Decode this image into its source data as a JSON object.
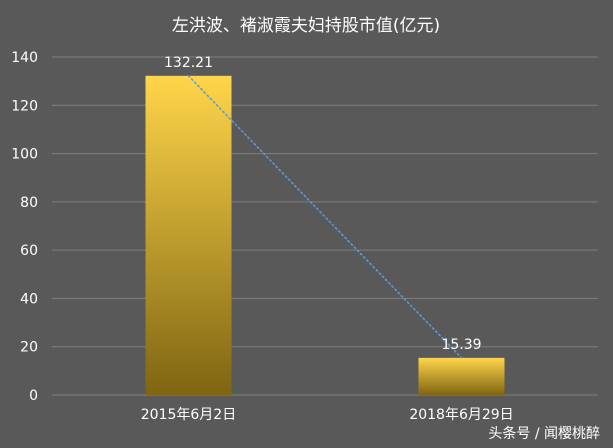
{
  "chart_data": {
    "type": "bar",
    "title": "左洪波、褚淑霞夫妇持股市值(亿元)",
    "categories": [
      "2015年6月2日",
      "2018年6月29日"
    ],
    "values": [
      132.21,
      15.39
    ],
    "data_labels": [
      "132.21",
      "15.39"
    ],
    "ylim": [
      0,
      140
    ],
    "y_ticks": [
      0,
      20,
      40,
      60,
      80,
      100,
      120,
      140
    ],
    "grid": true,
    "legend": "none",
    "trendline": "dotted line connecting bar tops",
    "colors": {
      "background": "#595959",
      "grid": "#7f7f7f",
      "bar_top": "#ffd54a",
      "bar_bottom": "#7f6512",
      "trendline": "#5b9bd5",
      "text": "#ffffff"
    }
  },
  "watermark": "头条号 / 闻樱桃醉"
}
